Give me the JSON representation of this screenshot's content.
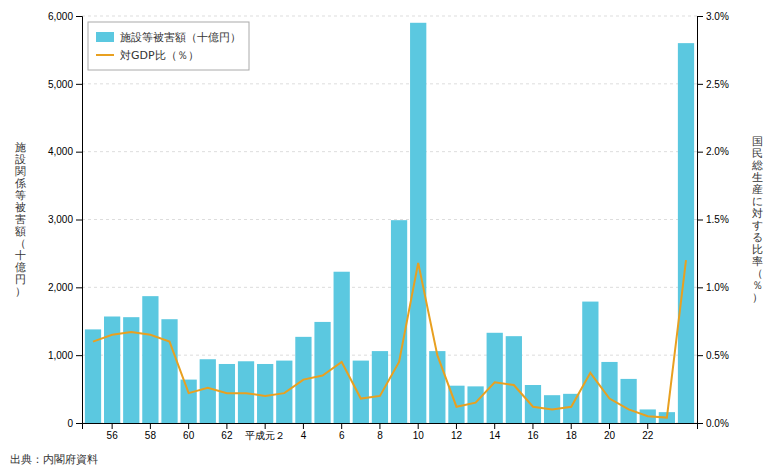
{
  "chart_data": {
    "type": "bar",
    "categories": [
      null,
      "56",
      null,
      "58",
      null,
      "60",
      null,
      "62",
      null,
      "平成元２",
      null,
      "4",
      null,
      "6",
      null,
      "8",
      null,
      "10",
      null,
      "12",
      null,
      "14",
      null,
      "16",
      null,
      "18",
      null,
      "20",
      null,
      "22",
      null,
      null
    ],
    "series": [
      {
        "name": "施設等被害額（十億円）",
        "type": "bar",
        "color": "#5bc8e0",
        "values": [
          1380,
          1570,
          1560,
          1870,
          1530,
          640,
          940,
          870,
          910,
          870,
          920,
          1270,
          1490,
          2230,
          920,
          1060,
          2990,
          5900,
          1060,
          550,
          540,
          1330,
          1280,
          560,
          410,
          430,
          1790,
          900,
          650,
          200,
          160,
          5600
        ]
      },
      {
        "name": "対GDP比（％）",
        "type": "line",
        "axis": "y2",
        "color": "#e8a020",
        "values": [
          0.6,
          0.65,
          0.67,
          0.65,
          0.6,
          0.22,
          0.26,
          0.22,
          0.22,
          0.2,
          0.22,
          0.32,
          0.35,
          0.45,
          0.18,
          0.2,
          0.45,
          1.18,
          0.5,
          0.12,
          0.15,
          0.3,
          0.28,
          0.12,
          0.1,
          0.12,
          0.37,
          0.18,
          0.1,
          0.05,
          0.04,
          1.2
        ]
      }
    ],
    "y_label": "施\n設\n関\n係\n等\n被\n害\n額\n（\n十\n億\n円\n）",
    "y2_label": "国\n民\n総\n生\n産\nに\n対\nす\nる\n比\n率\n（\n％\n）",
    "ylim": [
      0,
      6000
    ],
    "yticks": [
      0,
      {
        "value": 1000,
        "label": "1,000"
      },
      {
        "value": 2000,
        "label": "2,000"
      },
      {
        "value": 3000,
        "label": "3,000"
      },
      {
        "value": 4000,
        "label": "4,000"
      },
      {
        "value": 5000,
        "label": "5,000"
      },
      {
        "value": 6000,
        "label": "6,000"
      }
    ],
    "y2lim": [
      0.0,
      3.0
    ],
    "y2ticks": [
      {
        "value": 0.0,
        "label": "0.0%"
      },
      {
        "value": 0.5,
        "label": "0.5%"
      },
      {
        "value": 1.0,
        "label": "1.0%"
      },
      {
        "value": 1.5,
        "label": "1.5%"
      },
      {
        "value": 2.0,
        "label": "2.0%"
      },
      {
        "value": 2.5,
        "label": "2.5%"
      },
      {
        "value": 3.0,
        "label": "3.0%"
      }
    ],
    "grid": true,
    "legend": "upper-left",
    "annotations": [
      "出典：内閣府資料"
    ]
  }
}
